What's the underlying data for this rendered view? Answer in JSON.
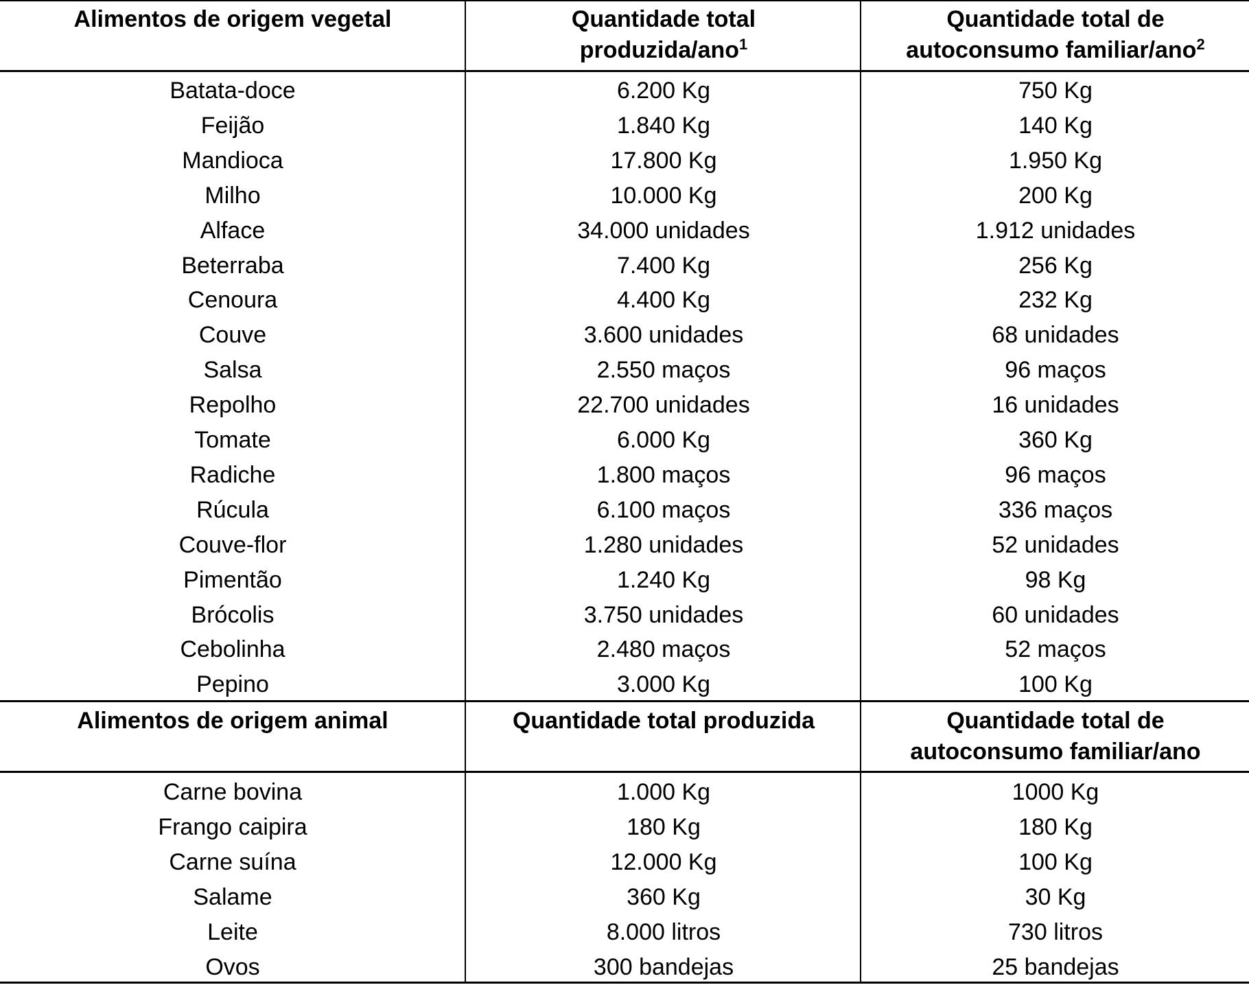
{
  "vegetal_section": {
    "headers": {
      "col1": "Alimentos de origem vegetal",
      "col2_line1": "Quantidade total",
      "col2_line2": "produzida/ano",
      "col2_sup": "1",
      "col3_line1": "Quantidade total de",
      "col3_line2": "autoconsumo familiar/ano",
      "col3_sup": "2"
    },
    "rows": [
      {
        "food": "Batata-doce",
        "produced": "6.200 Kg",
        "self_consumption": "750 Kg"
      },
      {
        "food": "Feijão",
        "produced": "1.840 Kg",
        "self_consumption": "140 Kg"
      },
      {
        "food": "Mandioca",
        "produced": "17.800 Kg",
        "self_consumption": "1.950 Kg"
      },
      {
        "food": "Milho",
        "produced": "10.000 Kg",
        "self_consumption": "200 Kg"
      },
      {
        "food": "Alface",
        "produced": "34.000 unidades",
        "self_consumption": "1.912 unidades"
      },
      {
        "food": "Beterraba",
        "produced": "7.400 Kg",
        "self_consumption": "256 Kg"
      },
      {
        "food": "Cenoura",
        "produced": "4.400 Kg",
        "self_consumption": "232 Kg"
      },
      {
        "food": "Couve",
        "produced": "3.600 unidades",
        "self_consumption": "68 unidades"
      },
      {
        "food": "Salsa",
        "produced": "2.550 maços",
        "self_consumption": "96 maços"
      },
      {
        "food": "Repolho",
        "produced": "22.700 unidades",
        "self_consumption": "16 unidades"
      },
      {
        "food": "Tomate",
        "produced": "6.000 Kg",
        "self_consumption": "360 Kg"
      },
      {
        "food": "Radiche",
        "produced": "1.800 maços",
        "self_consumption": "96 maços"
      },
      {
        "food": "Rúcula",
        "produced": "6.100 maços",
        "self_consumption": "336 maços"
      },
      {
        "food": "Couve-flor",
        "produced": "1.280 unidades",
        "self_consumption": "52 unidades"
      },
      {
        "food": "Pimentão",
        "produced": "1.240 Kg",
        "self_consumption": "98 Kg"
      },
      {
        "food": "Brócolis",
        "produced": "3.750 unidades",
        "self_consumption": "60 unidades"
      },
      {
        "food": "Cebolinha",
        "produced": "2.480 maços",
        "self_consumption": "52 maços"
      },
      {
        "food": "Pepino",
        "produced": "3.000 Kg",
        "self_consumption": "100 Kg"
      }
    ]
  },
  "animal_section": {
    "headers": {
      "col1": "Alimentos de origem animal",
      "col2_line1": "Quantidade total produzida",
      "col3_line1": "Quantidade total de",
      "col3_line2": "autoconsumo familiar/ano"
    },
    "rows": [
      {
        "food": "Carne bovina",
        "produced": "1.000 Kg",
        "self_consumption": "1000 Kg"
      },
      {
        "food": "Frango caipira",
        "produced": "180 Kg",
        "self_consumption": "180 Kg"
      },
      {
        "food": "Carne suína",
        "produced": "12.000 Kg",
        "self_consumption": "100 Kg"
      },
      {
        "food": "Salame",
        "produced": "360 Kg",
        "self_consumption": "30 Kg"
      },
      {
        "food": "Leite",
        "produced": "8.000 litros",
        "self_consumption": "730 litros"
      },
      {
        "food": "Ovos",
        "produced": "300 bandejas",
        "self_consumption": "25 bandejas"
      }
    ]
  }
}
